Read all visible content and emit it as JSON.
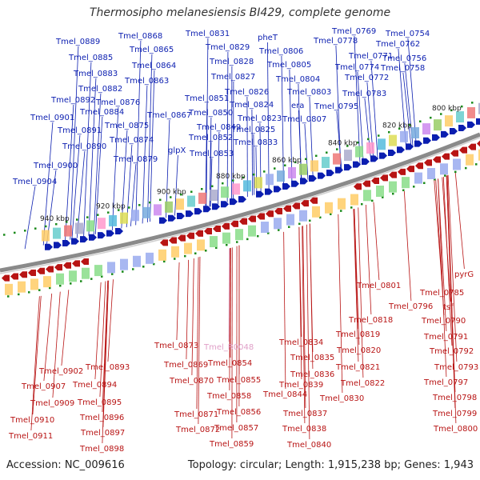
{
  "title": "Thermosipho melanesiensis BI429, complete genome",
  "accession_text": "Accession: NC_009616",
  "summary_text": "Topology: circular; Length: 1,915,238 bp; Genes: 1,943",
  "colors": {
    "plus_strand": "#0b1eb0",
    "minus_strand": "#b81414",
    "rna": "#e0a0c8",
    "backbone": "#8a8a8a",
    "gc_dot": "#1a8a1a"
  },
  "ticks": [
    "940 kbp",
    "920 kbp",
    "900 kbp",
    "880 kbp",
    "860 kbp",
    "840 kbp",
    "820 kbp",
    "800 kbp"
  ],
  "plus_labels": [
    "Tmel_0889",
    "Tmel_0868",
    "Tmel_0831",
    "pheT",
    "Tmel_0769",
    "Tmel_0754",
    "Tmel_0778",
    "Tmel_0762",
    "Tmel_0885",
    "Tmel_0865",
    "Tmel_0829",
    "Tmel_0806",
    "Tmel_0771",
    "Tmel_0756",
    "Tmel_0864",
    "Tmel_0828",
    "Tmel_0805",
    "Tmel_0774",
    "Tmel_0758",
    "Tmel_0883",
    "Tmel_0827",
    "Tmel_0804",
    "Tmel_0772",
    "Tmel_0882",
    "Tmel_0863",
    "Tmel_0826",
    "Tmel_0803",
    "Tmel_0783",
    "Tmel_0892",
    "Tmel_0876",
    "Tmel_0851",
    "Tmel_0824",
    "era",
    "Tmel_0795",
    "Tmel_0884",
    "Tmel_0867",
    "Tmel_0850",
    "Tmel_0823",
    "Tmel_0807",
    "Tmel_0901",
    "Tmel_0875",
    "Tmel_0849",
    "Tmel_0825",
    "Tmel_0891",
    "Tmel_0874",
    "glpX",
    "Tmel_0852",
    "Tmel_0833",
    "Tmel_0890",
    "Tmel_0879",
    "Tmel_0853",
    "Tmel_0900",
    "Tmel_0904"
  ],
  "minus_labels": [
    "pyrG",
    "Tmel_0801",
    "Tmel_0785",
    "Tmel_0796",
    "tsf",
    "Tmel_0818",
    "Tmel_0790",
    "Tmel_0873",
    "Tmel_0819",
    "Tmel_0791",
    "Tmel_0834",
    "Tmel_0820",
    "Tmel_0792",
    "Tmel_0893",
    "Tmel_0869",
    "Tmel_0854",
    "Tmel_0835",
    "Tmel_0902",
    "Tmel_0870",
    "Tmel_0855",
    "Tmel_0836",
    "Tmel_0821",
    "Tmel_0793",
    "Tmel_0894",
    "Tmel_0839",
    "Tmel_0907",
    "Tmel_0844",
    "Tmel_0822",
    "Tmel_0797",
    "Tmel_0895",
    "Tmel_0858",
    "Tmel_0830",
    "Tmel_0909",
    "Tmel_0798",
    "Tmel_0856",
    "Tmel_0837",
    "Tmel_0871",
    "Tmel_0896",
    "Tmel_0910",
    "Tmel_0799",
    "Tmel_0838",
    "Tmel_0872",
    "Tmel_0857",
    "Tmel_0897",
    "Tmel_0911",
    "Tmel_0800",
    "Tmel_0859",
    "Tmel_0840",
    "Tmel_0898"
  ],
  "rna_labels": [
    "Tmel_R0048"
  ]
}
